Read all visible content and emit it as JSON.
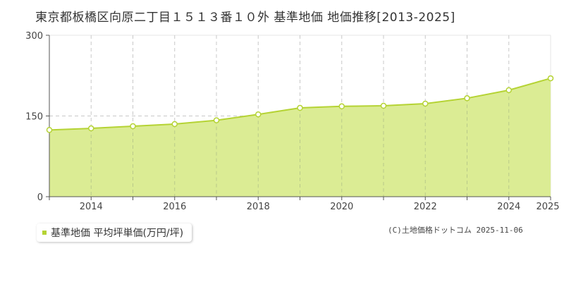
{
  "title": "東京都板橋区向原二丁目１５１３番１０外 基準地価 地価推移[2013-2025]",
  "legend": {
    "label": "基準地価 平均坪単価(万円/坪)",
    "color": "#b5d334"
  },
  "credit": "(C)土地価格ドットコム 2025-11-06",
  "colors": {
    "line": "#b5d334",
    "fill": "#dbec94",
    "grid": "#c8c8c8",
    "axis": "#555555"
  },
  "chart_data": {
    "type": "area",
    "title": "東京都板橋区向原二丁目１５１３番１０外 基準地価 地価推移[2013-2025]",
    "xlabel": "",
    "ylabel": "",
    "x": [
      2013,
      2014,
      2015,
      2016,
      2017,
      2018,
      2019,
      2020,
      2021,
      2022,
      2023,
      2024,
      2025
    ],
    "series": [
      {
        "name": "基準地価 平均坪単価(万円/坪)",
        "values": [
          124,
          127,
          131,
          135,
          142,
          153,
          165,
          168,
          169,
          173,
          183,
          198,
          220
        ]
      }
    ],
    "ylim": [
      0,
      300
    ],
    "yticks": [
      0,
      150,
      300
    ],
    "xtick_labels": [
      "2014",
      "2016",
      "2018",
      "2020",
      "2022",
      "2024",
      "2025"
    ],
    "grid": true,
    "legend_position": "bottom-left"
  }
}
